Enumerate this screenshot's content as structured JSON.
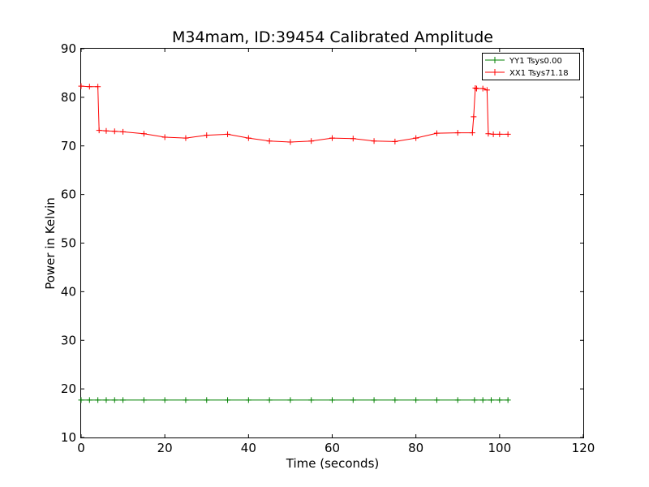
{
  "chart_data": {
    "type": "line",
    "title": "M34mam, ID:39454 Calibrated Amplitude",
    "xlabel": "Time (seconds)",
    "ylabel": "Power in Kelvin",
    "xlim": [
      0,
      120
    ],
    "ylim": [
      10,
      90
    ],
    "xticks": [
      "0",
      "20",
      "40",
      "60",
      "80",
      "100",
      "120"
    ],
    "yticks": [
      "10",
      "20",
      "30",
      "40",
      "50",
      "60",
      "70",
      "80",
      "90"
    ],
    "grid": false,
    "legend_position": "top-right",
    "marker": "+",
    "series": [
      {
        "name": "YY1 Tsys0.00",
        "color": "#008000",
        "x": [
          0,
          2,
          4,
          6,
          8,
          10,
          15,
          20,
          25,
          30,
          35,
          40,
          45,
          50,
          55,
          60,
          65,
          70,
          75,
          80,
          85,
          90,
          94,
          96,
          98,
          100,
          102
        ],
        "y": [
          17.7,
          17.7,
          17.7,
          17.7,
          17.7,
          17.7,
          17.7,
          17.7,
          17.7,
          17.7,
          17.7,
          17.7,
          17.7,
          17.7,
          17.7,
          17.7,
          17.7,
          17.7,
          17.7,
          17.7,
          17.7,
          17.7,
          17.7,
          17.7,
          17.7,
          17.7,
          17.7
        ]
      },
      {
        "name": "XX1 Tsys71.18",
        "color": "#ff0000",
        "x": [
          0,
          2,
          4,
          4.3,
          6,
          8,
          10,
          15,
          20,
          25,
          30,
          35,
          40,
          45,
          50,
          55,
          60,
          65,
          70,
          75,
          80,
          85,
          90,
          93.5,
          93.8,
          94.2,
          94.5,
          96,
          97,
          97.3,
          98.5,
          100,
          102
        ],
        "y": [
          82.3,
          82.2,
          82.2,
          73.2,
          73.1,
          73.0,
          72.9,
          72.5,
          71.8,
          71.6,
          72.2,
          72.4,
          71.6,
          71.0,
          70.8,
          71.0,
          71.6,
          71.5,
          71.0,
          70.9,
          71.6,
          72.6,
          72.7,
          72.7,
          76.0,
          81.9,
          81.8,
          81.8,
          81.5,
          72.5,
          72.4,
          72.4,
          72.4
        ]
      }
    ]
  }
}
